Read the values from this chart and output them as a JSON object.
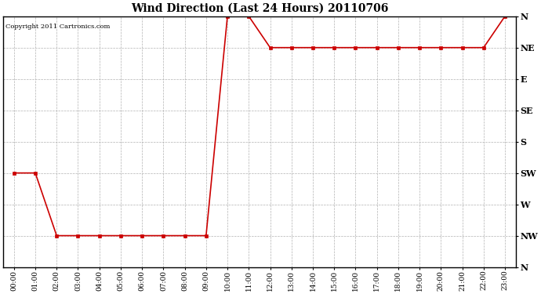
{
  "title": "Wind Direction (Last 24 Hours) 20110706",
  "copyright_text": "Copyright 2011 Cartronics.com",
  "line_color": "#cc0000",
  "bg_color": "#ffffff",
  "grid_color": "#aaaaaa",
  "marker": "s",
  "marker_size": 2.5,
  "ytick_display": [
    "N",
    "NW",
    "W",
    "SW",
    "S",
    "SE",
    "E",
    "NE",
    "N"
  ],
  "ytick_display_vals": [
    360,
    315,
    270,
    225,
    180,
    135,
    90,
    45,
    0
  ],
  "hours": [
    0,
    1,
    2,
    3,
    4,
    5,
    6,
    7,
    8,
    9,
    10,
    11,
    12,
    13,
    14,
    15,
    16,
    17,
    18,
    19,
    20,
    21,
    22,
    23
  ],
  "wind_degrees": [
    225,
    225,
    315,
    315,
    315,
    315,
    315,
    315,
    315,
    315,
    0,
    0,
    45,
    45,
    45,
    45,
    45,
    45,
    45,
    45,
    45,
    45,
    45,
    0
  ],
  "xtick_labels": [
    "00:00",
    "01:00",
    "02:00",
    "03:00",
    "04:00",
    "05:00",
    "06:00",
    "07:00",
    "08:00",
    "09:00",
    "10:00",
    "11:00",
    "12:00",
    "13:00",
    "14:00",
    "15:00",
    "16:00",
    "17:00",
    "18:00",
    "19:00",
    "20:00",
    "21:00",
    "22:00",
    "23:00"
  ],
  "figwidth": 6.9,
  "figheight": 3.75,
  "dpi": 100
}
